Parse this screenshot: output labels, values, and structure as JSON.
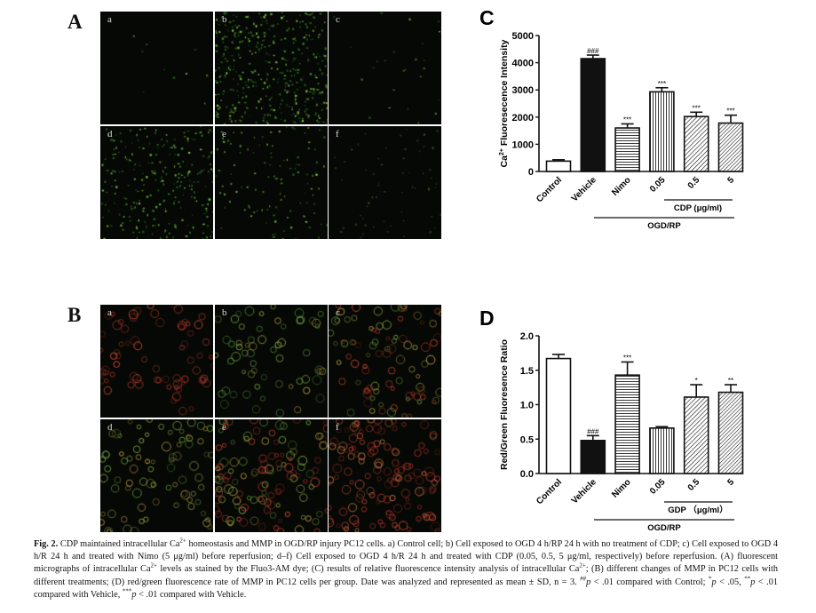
{
  "panels": {
    "A": {
      "label": "A",
      "images": [
        "a",
        "b",
        "c",
        "d",
        "e",
        "f"
      ]
    },
    "B": {
      "label": "B",
      "images": [
        "a",
        "b",
        "c",
        "d",
        "e",
        "f"
      ]
    }
  },
  "chart_data": [
    {
      "panel_label": "C",
      "type": "bar",
      "ylabel": "Ca2+ Fluoresecence Intensity",
      "ylabel_main": "Ca",
      "ylabel_sup": "2+",
      "ylabel_rest": " Fluoresecence Intensity",
      "ylim": [
        0,
        5000
      ],
      "yticks": [
        "0",
        "1000",
        "2000",
        "3000",
        "4000",
        "5000"
      ],
      "categories": [
        "Control",
        "Vehicle",
        "Nimo",
        "0.05",
        "0.5",
        "5"
      ],
      "values": [
        380,
        4150,
        1600,
        2930,
        2020,
        1780
      ],
      "errors": [
        50,
        130,
        150,
        150,
        160,
        290
      ],
      "annotations": [
        "",
        "###",
        "***",
        "***",
        "***",
        "***"
      ],
      "fills": [
        "white",
        "black",
        "hlines",
        "vlines",
        "diag",
        "diag2"
      ],
      "group_labels": {
        "sub": "CDP (μg/ml)",
        "main": "OGD/RP"
      }
    },
    {
      "panel_label": "D",
      "type": "bar",
      "ylabel": "Red/Green Fluoresence Ratio",
      "ylim": [
        0,
        2.0
      ],
      "yticks": [
        "0.0",
        "0.5",
        "1.0",
        "1.5",
        "2.0"
      ],
      "categories": [
        "Control",
        "Vehicle",
        "Nimo",
        "0.05",
        "0.5",
        "5"
      ],
      "values": [
        1.67,
        0.48,
        1.43,
        0.66,
        1.11,
        1.18
      ],
      "errors": [
        0.06,
        0.07,
        0.19,
        0.02,
        0.18,
        0.11
      ],
      "annotations": [
        "",
        "###",
        "***",
        "",
        "*",
        "**"
      ],
      "fills": [
        "white",
        "black",
        "hlines",
        "vlines",
        "diag",
        "diag2"
      ],
      "group_labels": {
        "sub": "GDP （μg/ml）",
        "main": "OGD/RP"
      }
    }
  ],
  "caption": [
    {
      "t": "Fig. 2.",
      "b": true
    },
    {
      "t": " CDP maintained intracellular Ca"
    },
    {
      "t": "2+",
      "sup": true
    },
    {
      "t": " homeostasis and MMP in OGD/RP injury PC12 cells. a) Control cell; b) Cell exposed to OGD 4 h/RP 24 h with no treatment of CDP; c) Cell exposed to OGD 4 h/R 24 h and treated with Nimo (5 μg/ml) before reperfusion; d–f) Cell exposed to OGD 4 h/R 24 h and treated with CDP (0.05, 0.5, 5 μg/ml, respectively) before reperfusion. (A) fluorescent micrographs of intracellular Ca"
    },
    {
      "t": "2+",
      "sup": true
    },
    {
      "t": " levels as stained by the Fluo3-AM dye; (C) results of relative fluorescence intensity analysis of intracellular Ca"
    },
    {
      "t": "2+",
      "sup": true
    },
    {
      "t": "; (B) different changes of MMP in PC12 cells with different treatments; (D) red/green fluorescence rate of MMP in PC12 cells per group. Date was analyzed and represented as mean ± SD, n = 3. "
    },
    {
      "t": "##",
      "sup": true
    },
    {
      "t": "p",
      "i": true
    },
    {
      "t": " < .01 compared with Control; "
    },
    {
      "t": "*",
      "sup": true
    },
    {
      "t": "p",
      "i": true
    },
    {
      "t": " < .05, "
    },
    {
      "t": "**",
      "sup": true
    },
    {
      "t": "p",
      "i": true
    },
    {
      "t": " < .01 compared with Vehicle, "
    },
    {
      "t": "***",
      "sup": true
    },
    {
      "t": "p",
      "i": true
    },
    {
      "t": " < .01 compared with Vehicle."
    }
  ]
}
